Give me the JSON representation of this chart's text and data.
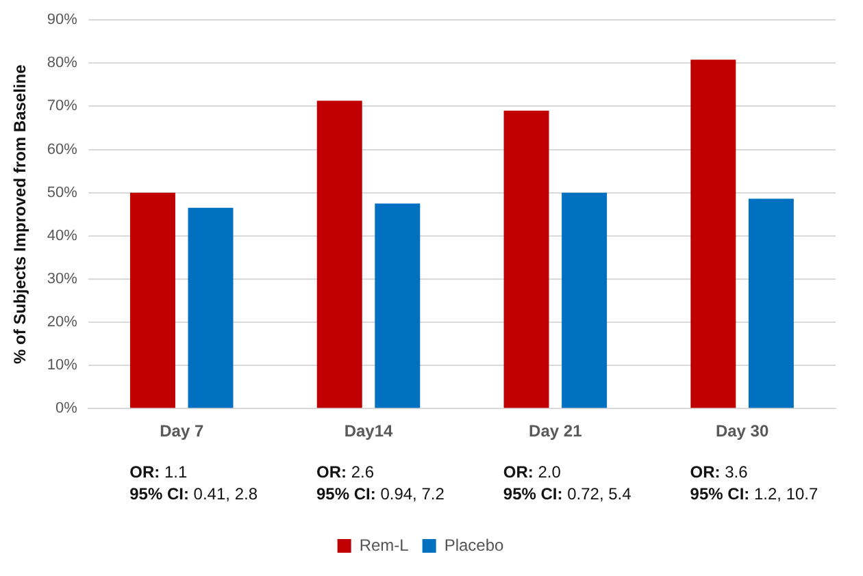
{
  "chart_data": {
    "type": "bar",
    "ylabel": "% of Subjects Improved from Baseline",
    "categories": [
      "Day 7",
      "Day14",
      "Day 21",
      "Day 30"
    ],
    "series": [
      {
        "name": "Rem-L",
        "color": "#c00000",
        "values": [
          50,
          71.3,
          69,
          80.8
        ]
      },
      {
        "name": "Placebo",
        "color": "#0070c0",
        "values": [
          46.5,
          47.5,
          50,
          48.6
        ]
      }
    ],
    "ylim": [
      0,
      90
    ],
    "yticks": [
      {
        "value": 0,
        "label": "0%"
      },
      {
        "value": 10,
        "label": "10%"
      },
      {
        "value": 20,
        "label": "20%"
      },
      {
        "value": 30,
        "label": "30%"
      },
      {
        "value": 40,
        "label": "40%"
      },
      {
        "value": 50,
        "label": "50%"
      },
      {
        "value": 60,
        "label": "60%"
      },
      {
        "value": 70,
        "label": "70%"
      },
      {
        "value": 80,
        "label": "80%"
      },
      {
        "value": 90,
        "label": "90%"
      }
    ],
    "grid": "y",
    "legend": "bottom",
    "annotations": [
      "OR: 1.1\n95% CI: 0.41, 2.8",
      "OR: 2.6\n95% CI: 0.94, 7.2",
      "OR: 2.0\n95% CI: 0.72, 5.4",
      "OR: 3.6\n95% CI: 1.2, 10.7"
    ]
  }
}
